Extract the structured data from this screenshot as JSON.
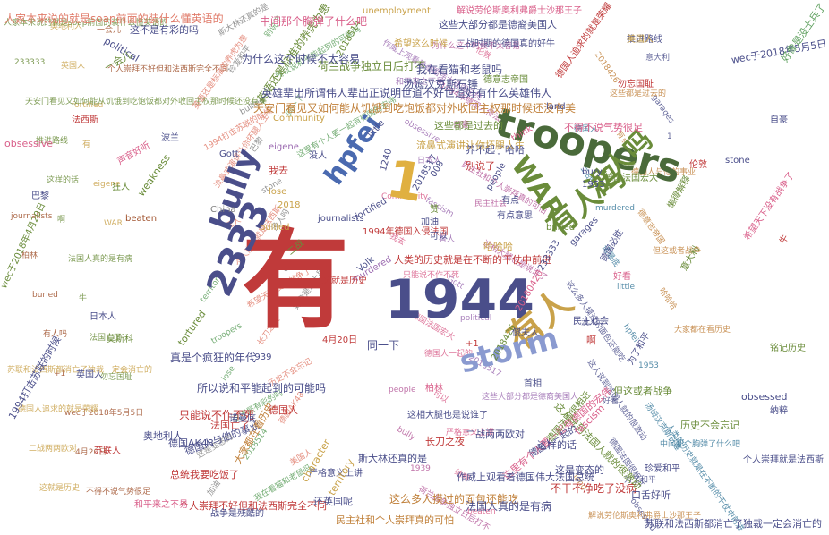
{
  "palette": [
    "#6a8c3a",
    "#e07b6a",
    "#d95f8a",
    "#4a4e8a",
    "#c9a24a",
    "#7f7f7f",
    "#9b6ab0",
    "#3a7a9b",
    "#a0522d",
    "#5fa05f",
    "#b55a9a",
    "#c0803a"
  ],
  "words": [
    {
      "text": "有",
      "color": "#c03a3a"
    },
    {
      "text": "1944",
      "color": "#4a4e8a"
    },
    {
      "text": "troopers",
      "color": "#4a6a3a"
    },
    {
      "text": "有人",
      "color": "#c9a24a"
    },
    {
      "text": "1",
      "color": "#e0b040"
    },
    {
      "text": "2333",
      "color": "#4a4e8a"
    },
    {
      "text": "有人吗",
      "color": "#6a8c3a"
    },
    {
      "text": "没人吗",
      "color": "#6a8c3a"
    },
    {
      "text": "storm",
      "color": "#8a9ad0"
    },
    {
      "text": "bully",
      "color": "#4a4e8a"
    },
    {
      "text": "hpfei",
      "color": "#4a6ab0"
    },
    {
      "text": "WAR",
      "color": "#6a8c3a"
    },
    {
      "text": "人家本来说的就是soap前面的装什么懂英语的",
      "color": "#e07b6a"
    },
    {
      "text": "这不是有彩的吗",
      "color": "#4a4e8a"
    },
    {
      "text": "political",
      "color": "#4a4e8a"
    },
    {
      "text": "unemployment",
      "color": "#c9a24a"
    },
    {
      "text": "解说劳伦斯奥利弗爵士沙那王子",
      "color": "#d95f8a"
    },
    {
      "text": "wec于2018年5月5日",
      "color": "#4a4e8a"
    },
    {
      "text": "好像是没士兵了",
      "color": "#5fa05f"
    },
    {
      "text": "英语还是标准的养虎为患",
      "color": "#6a8c3a"
    },
    {
      "text": "荷兰战争独立日后打不",
      "color": "#6a8c3a"
    },
    {
      "text": "汤姆汉克斯石锤",
      "color": "#4a4e8a"
    },
    {
      "text": "英雄辈出所谓伟人辈出正说明世道不好世道好有什么英雄伟人",
      "color": "#4a4e8a"
    },
    {
      "text": "天安门看见又如何能从饥饿到吃饱饭都对外收回主权那时候还没有美",
      "color": "#c0803a"
    },
    {
      "text": "我在看猫和老鼠吗",
      "color": "#4a4e8a"
    },
    {
      "text": "这些大部分都是德裔美国人",
      "color": "#4a4e8a"
    },
    {
      "text": "Community",
      "color": "#c9a24a"
    },
    {
      "text": "这些都是过去的",
      "color": "#6a8c3a"
    },
    {
      "text": "不得不说气势很足",
      "color": "#d95f8a"
    },
    {
      "text": "养不起了哈哈",
      "color": "#4a4e8a"
    },
    {
      "text": "流鼻式演讲让你坏腿人生",
      "color": "#c9a24a"
    },
    {
      "text": "1994年德国入侵法国",
      "color": "#c03a3a"
    },
    {
      "text": "人类的历史就是在不断的干仗中前进",
      "color": "#c03a3a"
    },
    {
      "text": "这么多人摸过的面包还能吃",
      "color": "#c0803a"
    },
    {
      "text": "这样的话",
      "color": "#4a4e8a"
    },
    {
      "text": "所以说和平能起到的可能吗",
      "color": "#4a4e8a"
    },
    {
      "text": "真是个疯狂的年代",
      "color": "#4a4e8a"
    },
    {
      "text": "只能说不作不死",
      "color": "#c03a3a"
    },
    {
      "text": "德国人与他的事业",
      "color": "#4a4e8a"
    },
    {
      "text": "个人崇拜不好但和法西斯完全不同",
      "color": "#c03a3a"
    },
    {
      "text": "苏联和法西斯都消亡了独裁一定会消亡的",
      "color": "#4a4e8a"
    },
    {
      "text": "个人崇拜就是法西斯",
      "color": "#4a4e8a"
    },
    {
      "text": "民主社和个人崇拜真的可怕",
      "color": "#c0803a"
    },
    {
      "text": "不干不净吃了没病",
      "color": "#c03a3a"
    },
    {
      "text": "这人说到法国人就的很激动",
      "color": "#6a8c3a"
    },
    {
      "text": "法国人真的是有病",
      "color": "#4a4e8a"
    },
    {
      "text": "这里有个人要一起有德国的宏伟",
      "color": "#d95f8a"
    },
    {
      "text": "这是变态的",
      "color": "#4a4e8a"
    },
    {
      "text": "德国人一起的",
      "color": "#4a4e8a"
    },
    {
      "text": "但这或者战争",
      "color": "#6a8c3a"
    },
    {
      "text": "口舌好听",
      "color": "#4a4e8a"
    },
    {
      "text": "二战两两欧对",
      "color": "#4a4e8a"
    },
    {
      "text": "长刀之夜",
      "color": "#c03a3a"
    },
    {
      "text": "这相大腿也是说谁了",
      "color": "#4a4e8a"
    },
    {
      "text": "作威上观看着德国伟大法国总统",
      "color": "#4a4e8a"
    },
    {
      "text": "德国法国很相近",
      "color": "#6a8c3a"
    },
    {
      "text": "法国亡了",
      "color": "#c03a3a"
    },
    {
      "text": "还英国呢",
      "color": "#4a4e8a"
    },
    {
      "text": "斯大林还真的是",
      "color": "#4a4e8a"
    },
    {
      "text": "严格意义上讲",
      "color": "#4a4e8a"
    },
    {
      "text": "大家都在看历史",
      "color": "#c0803a"
    },
    {
      "text": "德国人",
      "color": "#c03a3a"
    },
    {
      "text": "奥地利人",
      "color": "#4a4e8a"
    },
    {
      "text": "德国AK48",
      "color": "#4a4e8a"
    },
    {
      "text": "总统我要吃饭了",
      "color": "#c03a3a"
    },
    {
      "text": "obsessive",
      "color": "#d95f8a"
    },
    {
      "text": "obsessed",
      "color": "#4a4e8a"
    },
    {
      "text": "tortured",
      "color": "#6a8c3a"
    },
    {
      "text": "journalists",
      "color": "#4a4e8a"
    },
    {
      "text": "bullied",
      "color": "#c9a24a"
    },
    {
      "text": "beaten",
      "color": "#a0522d"
    },
    {
      "text": "weakness",
      "color": "#6a8c3a"
    },
    {
      "text": "murdered",
      "color": "#9b6ab0"
    },
    {
      "text": "fortified",
      "color": "#4a4e8a"
    },
    {
      "text": "character",
      "color": "#c9a24a"
    },
    {
      "text": "territory",
      "color": "#c9a24a"
    },
    {
      "text": "fascism",
      "color": "#d95f8a"
    },
    {
      "text": "garages",
      "color": "#4a4e8a"
    },
    {
      "text": "bury",
      "color": "#4a4e8a"
    },
    {
      "text": "buried",
      "color": "#6a8c3a"
    },
    {
      "text": "stone",
      "color": "#4a4e8a"
    },
    {
      "text": "think",
      "color": "#d95f8a"
    },
    {
      "text": "people",
      "color": "#4a4e8a"
    },
    {
      "text": "little",
      "color": "#4a4e8a"
    },
    {
      "text": "eigene",
      "color": "#9b6ab0"
    },
    {
      "text": "Volk",
      "color": "#4a4e8a"
    },
    {
      "text": "lose",
      "color": "#c9a24a"
    },
    {
      "text": "Gott",
      "color": "#4a4e8a"
    },
    {
      "text": "China",
      "color": "#7f7f7f"
    },
    {
      "text": "land",
      "color": "#4a4e8a"
    },
    {
      "text": "+1",
      "color": "#c03a3a"
    },
    {
      "text": "008",
      "color": "#4a4e8a"
    },
    {
      "text": "1240",
      "color": "#4a4e8a"
    },
    {
      "text": "1939",
      "color": "#4a4e8a"
    },
    {
      "text": "1953",
      "color": "#4a4e8a"
    },
    {
      "text": "2018",
      "color": "#c9a24a"
    },
    {
      "text": "233333",
      "color": "#4a4e8a"
    },
    {
      "text": "2018514",
      "color": "#6a8c3a"
    },
    {
      "text": "2018517",
      "color": "#4a4e8a"
    },
    {
      "text": "20180420",
      "color": "#d95f8a"
    },
    {
      "text": "2018426",
      "color": "#6a8c3a"
    },
    {
      "text": "4月20日",
      "color": "#c03a3a"
    },
    {
      "text": "wec于2018年4月20日",
      "color": "#6a8c3a"
    },
    {
      "text": "1994打击苏联的时候",
      "color": "#4a4e8a"
    },
    {
      "text": "为什么这个时候不太容易",
      "color": "#4a4e8a"
    },
    {
      "text": "中间那个胸弹了什么吧",
      "color": "#d95f8a"
    },
    {
      "text": "希望这么时候",
      "color": "#c9a24a"
    },
    {
      "text": "推进路线",
      "color": "#4a4e8a"
    },
    {
      "text": "别说了",
      "color": "#c03a3a"
    },
    {
      "text": "有点意思",
      "color": "#4a4e8a"
    },
    {
      "text": "我去",
      "color": "#c03a3a"
    },
    {
      "text": "有点",
      "color": "#4a4e8a"
    },
    {
      "text": "一会儿",
      "color": "#6a8c3a"
    },
    {
      "text": "声音好听",
      "color": "#d95f8a"
    },
    {
      "text": "狂人",
      "color": "#6a8c3a"
    },
    {
      "text": "自豪",
      "color": "#4a4e8a"
    },
    {
      "text": "首相",
      "color": "#4a4e8a"
    },
    {
      "text": "没人",
      "color": "#4a4e8a"
    },
    {
      "text": "啊",
      "color": "#c03a3a"
    },
    {
      "text": "同一下",
      "color": "#4a4e8a"
    },
    {
      "text": "傻夫人",
      "color": "#4a4e8a"
    },
    {
      "text": "德国法国宏大",
      "color": "#6a8c3a"
    },
    {
      "text": "德意志帝国",
      "color": "#6a8c3a"
    },
    {
      "text": "二战时期的德国真的好牛",
      "color": "#4a4e8a"
    },
    {
      "text": "德国人追求的就是荣耀",
      "color": "#c03a3a"
    },
    {
      "text": "希望天下没有战争了",
      "color": "#d95f8a"
    },
    {
      "text": "民主社会",
      "color": "#4a4e8a"
    },
    {
      "text": "懒得解释",
      "color": "#6a8c3a"
    },
    {
      "text": "好看",
      "color": "#d95f8a"
    },
    {
      "text": "牛",
      "color": "#c03a3a"
    },
    {
      "text": "赞",
      "color": "#6a8c3a"
    },
    {
      "text": "加油",
      "color": "#4a4e8a"
    },
    {
      "text": "可以",
      "color": "#4a4e8a"
    },
    {
      "text": "哈哈哈",
      "color": "#c9a24a"
    },
    {
      "text": "德国必胜",
      "color": "#4a4e8a"
    },
    {
      "text": "这就是历史",
      "color": "#c03a3a"
    },
    {
      "text": "历史不会忘记",
      "color": "#6a8c3a"
    },
    {
      "text": "战争是残酷的",
      "color": "#4a4e8a"
    },
    {
      "text": "和平来之不易",
      "color": "#d95f8a"
    },
    {
      "text": "为了和平",
      "color": "#4a4e8a"
    },
    {
      "text": "勿忘国耻",
      "color": "#c03a3a"
    },
    {
      "text": "铭记历史",
      "color": "#6a8c3a"
    },
    {
      "text": "珍爱和平",
      "color": "#4a4e8a"
    },
    {
      "text": "纳粹",
      "color": "#4a4e8a"
    },
    {
      "text": "法西斯",
      "color": "#c03a3a"
    },
    {
      "text": "二战",
      "color": "#6a8c3a"
    },
    {
      "text": "英国人",
      "color": "#4a4e8a"
    },
    {
      "text": "美国人",
      "color": "#c9a24a"
    },
    {
      "text": "苏联人",
      "color": "#c03a3a"
    },
    {
      "text": "日本人",
      "color": "#4a4e8a"
    },
    {
      "text": "意大利",
      "color": "#6a8c3a"
    },
    {
      "text": "波兰",
      "color": "#4a4e8a"
    },
    {
      "text": "柏林",
      "color": "#d95f8a"
    },
    {
      "text": "巴黎",
      "color": "#4a4e8a"
    },
    {
      "text": "伦敦",
      "color": "#c03a3a"
    },
    {
      "text": "莫斯科",
      "color": "#6a8c3a"
    },
    {
      "text": "诺曼底",
      "color": "#4a4e8a"
    }
  ]
}
